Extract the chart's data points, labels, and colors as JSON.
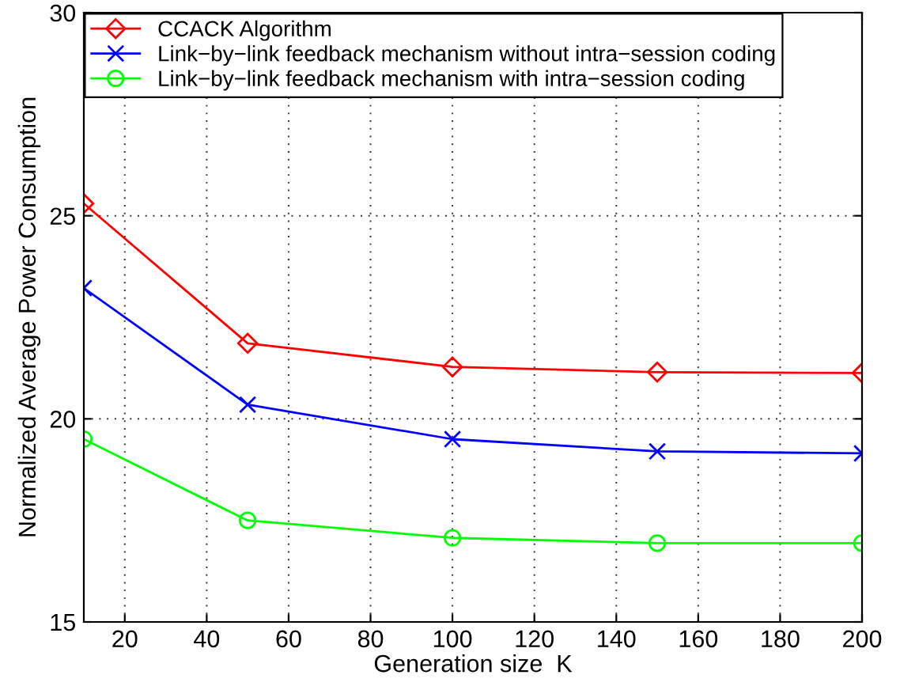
{
  "chart_data": {
    "type": "line",
    "xlabel": "Generation size  K",
    "ylabel": "Normalized Average Power Consumption",
    "x": [
      10,
      50,
      100,
      150,
      200
    ],
    "series": [
      {
        "name": "CCACK Algorithm",
        "color": "#ff0000",
        "marker": "diamond",
        "values": [
          25.3,
          21.86,
          21.28,
          21.15,
          21.13
        ]
      },
      {
        "name": "Link−by−link feedback mechanism without intra−session coding",
        "color": "#0000ff",
        "marker": "cross",
        "values": [
          23.22,
          20.35,
          19.5,
          19.2,
          19.15
        ]
      },
      {
        "name": "Link−by−link feedback mechanism with intra−session coding",
        "color": "#00ff00",
        "marker": "circle",
        "values": [
          19.5,
          17.5,
          17.07,
          16.94,
          16.94
        ]
      }
    ],
    "xlim": [
      10,
      200
    ],
    "ylim": [
      15,
      30
    ],
    "xticks": [
      20,
      40,
      60,
      80,
      100,
      120,
      140,
      160,
      180,
      200
    ],
    "yticks": [
      15,
      20,
      25,
      30
    ],
    "grid": true,
    "legend": "top left",
    "line_style": "solid"
  }
}
